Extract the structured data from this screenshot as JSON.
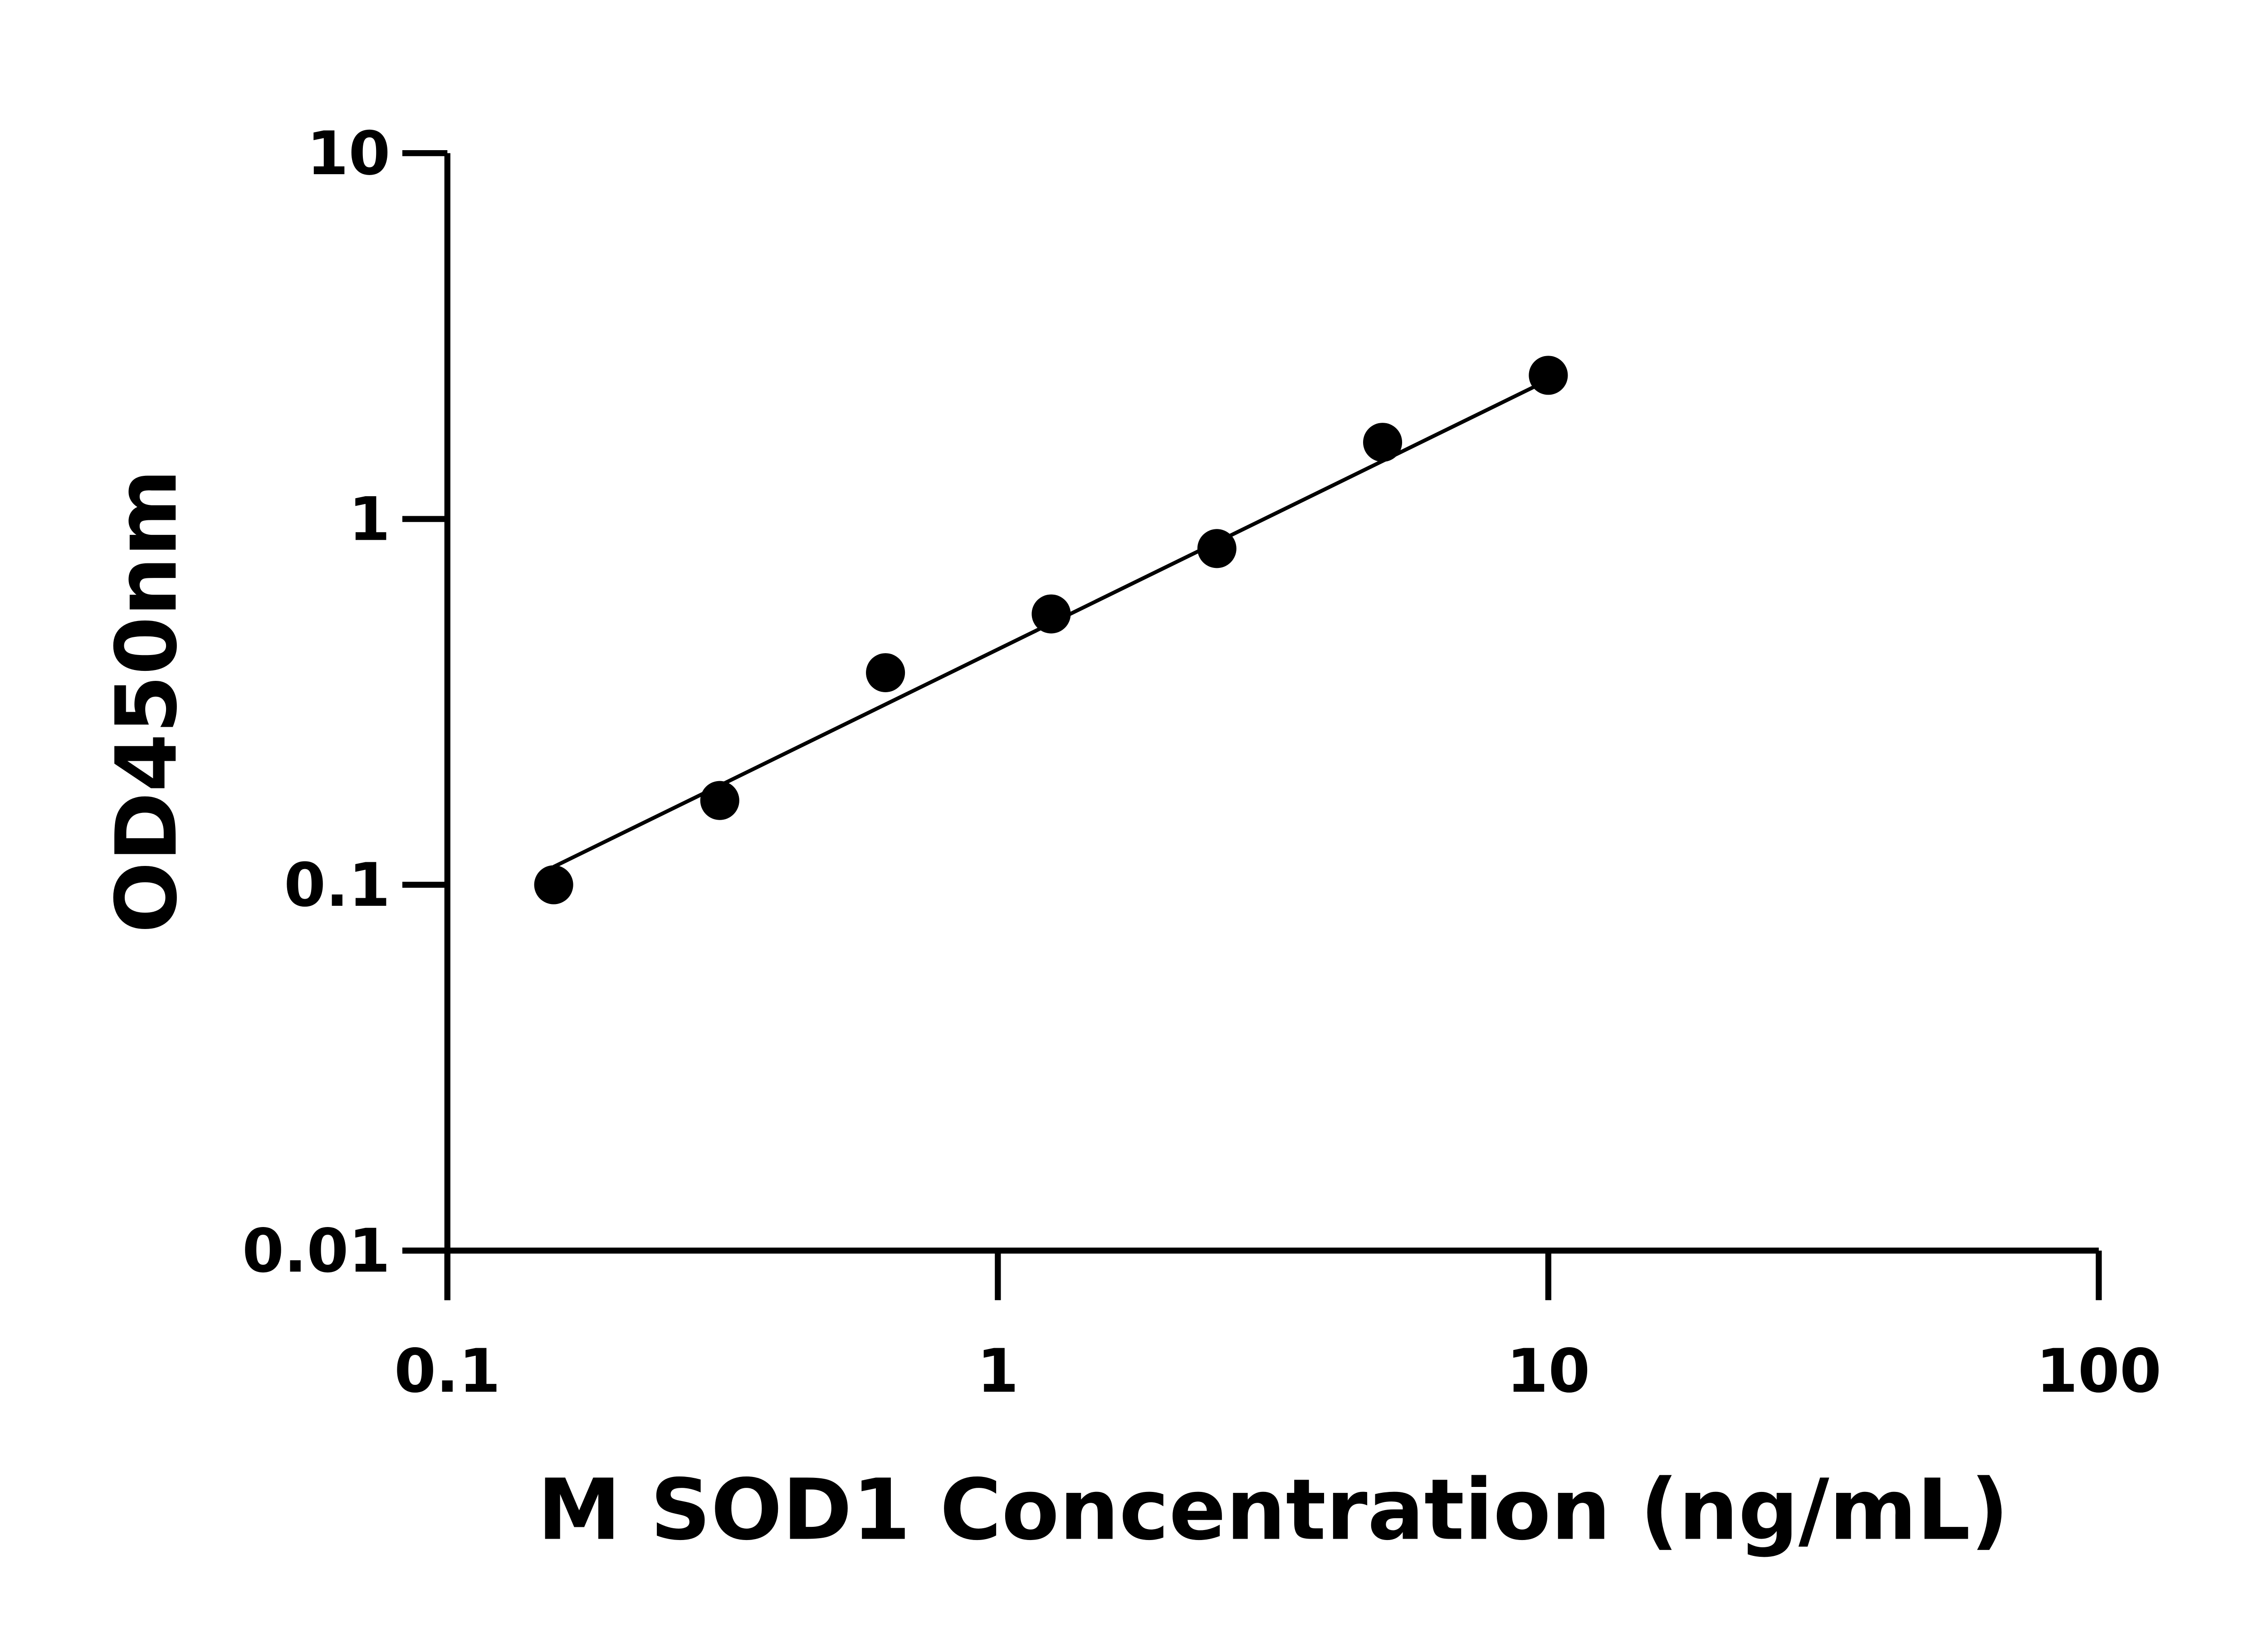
{
  "chart_data": {
    "type": "scatter",
    "title": "",
    "xlabel": "M SOD1 Concentration (ng/mL)",
    "ylabel": "OD450nm",
    "x_scale": "log",
    "y_scale": "log",
    "xlim": [
      0.1,
      100
    ],
    "ylim": [
      0.01,
      10
    ],
    "x_ticks": [
      0.1,
      1,
      10,
      100
    ],
    "x_tick_labels": [
      "0.1",
      "1",
      "10",
      "100"
    ],
    "y_ticks": [
      0.01,
      0.1,
      1,
      10
    ],
    "y_tick_labels": [
      "0.01",
      "0.1",
      "1",
      "10"
    ],
    "grid": false,
    "legend": "none",
    "marker_color": "#000000",
    "series": [
      {
        "x": [
          0.156,
          0.3125,
          0.625,
          1.25,
          2.5,
          5,
          10
        ],
        "y": [
          0.1,
          0.17,
          0.38,
          0.55,
          0.83,
          1.62,
          2.47
        ]
      }
    ],
    "fit_line": {
      "x": [
        0.156,
        10
      ],
      "y": [
        0.112,
        2.4
      ]
    }
  }
}
